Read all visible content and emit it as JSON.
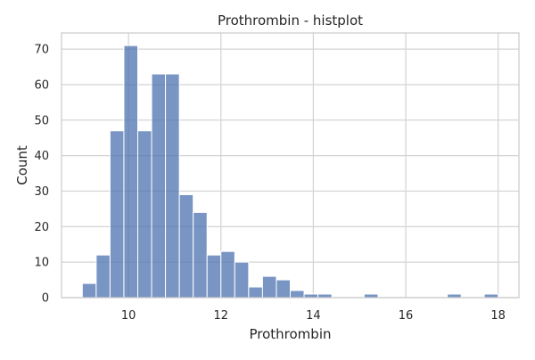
{
  "chart_data": {
    "type": "bar",
    "title": "Prothrombin - histplot",
    "xlabel": "Prothrombin",
    "ylabel": "Count",
    "xlim": [
      8.55,
      18.45
    ],
    "ylim": [
      0,
      74.55
    ],
    "xticks": [
      10,
      12,
      14,
      16,
      18
    ],
    "yticks": [
      0,
      10,
      20,
      30,
      40,
      50,
      60,
      70
    ],
    "grid": true,
    "bar_color": "#4c72b0",
    "bins": [
      {
        "x0": 9.0,
        "x1": 9.3,
        "count": 4
      },
      {
        "x0": 9.3,
        "x1": 9.6,
        "count": 12
      },
      {
        "x0": 9.6,
        "x1": 9.9,
        "count": 47
      },
      {
        "x0": 9.9,
        "x1": 10.2,
        "count": 71
      },
      {
        "x0": 10.2,
        "x1": 10.5,
        "count": 47
      },
      {
        "x0": 10.5,
        "x1": 10.8,
        "count": 63
      },
      {
        "x0": 10.8,
        "x1": 11.1,
        "count": 63
      },
      {
        "x0": 11.1,
        "x1": 11.4,
        "count": 29
      },
      {
        "x0": 11.4,
        "x1": 11.7,
        "count": 24
      },
      {
        "x0": 11.7,
        "x1": 12.0,
        "count": 12
      },
      {
        "x0": 12.0,
        "x1": 12.3,
        "count": 13
      },
      {
        "x0": 12.3,
        "x1": 12.6,
        "count": 10
      },
      {
        "x0": 12.6,
        "x1": 12.9,
        "count": 3
      },
      {
        "x0": 12.9,
        "x1": 13.2,
        "count": 6
      },
      {
        "x0": 13.2,
        "x1": 13.5,
        "count": 5
      },
      {
        "x0": 13.5,
        "x1": 13.8,
        "count": 2
      },
      {
        "x0": 13.8,
        "x1": 14.1,
        "count": 1
      },
      {
        "x0": 14.1,
        "x1": 14.4,
        "count": 1
      },
      {
        "x0": 15.1,
        "x1": 15.4,
        "count": 1
      },
      {
        "x0": 16.9,
        "x1": 17.2,
        "count": 1
      },
      {
        "x0": 17.7,
        "x1": 18.0,
        "count": 1
      }
    ]
  }
}
